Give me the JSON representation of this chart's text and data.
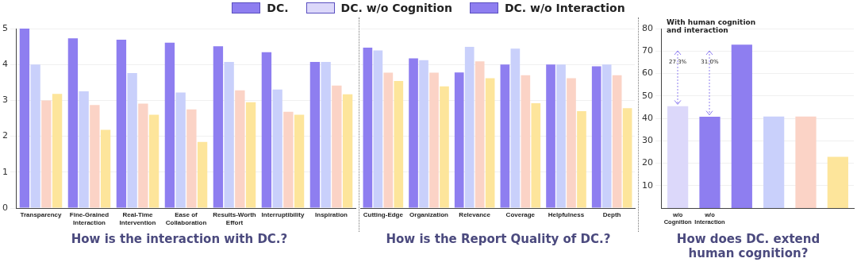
{
  "chart_data": [
    {
      "type": "bar",
      "title": "How is the interaction with DC.?",
      "categories": [
        "Transparency",
        "Fine-Grained Interaction",
        "Real-Time Intervention",
        "Ease of Collaboration",
        "Results-Worth Effort",
        "Interruptibility",
        "Inspiration"
      ],
      "series": [
        {
          "name": "DC.",
          "color": "#8e7ef0",
          "values": [
            5.0,
            4.73,
            4.69,
            4.61,
            4.51,
            4.34,
            4.07
          ]
        },
        {
          "color": "#c9d0fb",
          "values": [
            4.0,
            3.25,
            3.76,
            3.22,
            4.07,
            3.3,
            4.07
          ]
        },
        {
          "color": "#fbd3c6",
          "values": [
            3.0,
            2.87,
            2.91,
            2.75,
            3.28,
            2.68,
            3.41
          ]
        },
        {
          "color": "#fde59b",
          "values": [
            3.18,
            2.18,
            2.6,
            1.84,
            2.95,
            2.6,
            3.17
          ]
        }
      ],
      "ylim": [
        0,
        5
      ],
      "yticks": [
        0,
        1,
        2,
        3,
        4,
        5
      ],
      "grid": "y",
      "legend": "top"
    },
    {
      "type": "bar",
      "title": "How is the Report Quality of DC.?",
      "categories": [
        "Cutting-Edge",
        "Organization",
        "Relevance",
        "Coverage",
        "Helpfulness",
        "Depth"
      ],
      "series": [
        {
          "color": "#8e7ef0",
          "values": [
            4.47,
            4.17,
            3.78,
            4.0,
            4.0,
            3.95
          ]
        },
        {
          "color": "#c9d0fb",
          "values": [
            4.39,
            4.12,
            4.49,
            4.44,
            4.0,
            4.0
          ]
        },
        {
          "color": "#fbd3c6",
          "values": [
            3.77,
            3.77,
            4.09,
            3.7,
            3.62,
            3.7
          ]
        },
        {
          "color": "#fde59b",
          "values": [
            3.54,
            3.39,
            3.62,
            2.92,
            2.7,
            2.78
          ]
        }
      ],
      "ylim": [
        0,
        5
      ],
      "yticks": [
        0,
        1,
        2,
        3,
        4,
        5
      ],
      "grid": "y",
      "tick_labels": "x"
    },
    {
      "type": "bar",
      "title": "How does DC. extend human cognition?",
      "categories": [
        "w/o Cognition",
        "w/o Interaction",
        null,
        null,
        null,
        null
      ],
      "stacked": true,
      "series": [
        {
          "name": "DC. w/o Cognition",
          "color": "#dcd8fa",
          "values": [
            45.4,
            null,
            null,
            null,
            null,
            null
          ]
        },
        {
          "name": "DC. w/o Interaction",
          "color": "#8e7ef0",
          "values": [
            null,
            40.7,
            null,
            null,
            null,
            null
          ]
        },
        {
          "color": "#8e7ef0",
          "values": [
            null,
            null,
            72.8,
            null,
            null,
            null
          ]
        },
        {
          "color": "#c9d0fb",
          "values": [
            null,
            null,
            null,
            40.8,
            null,
            null
          ]
        },
        {
          "color": "#fbd3c6",
          "values": [
            null,
            null,
            null,
            null,
            40.8,
            null
          ]
        },
        {
          "color": "#fde59b",
          "values": [
            null,
            null,
            null,
            null,
            null,
            22.8
          ]
        }
      ],
      "ylim": [
        0,
        80
      ],
      "yticks": [
        10,
        20,
        30,
        40,
        50,
        60,
        70,
        80
      ],
      "grid": "y",
      "legend": "top",
      "annotations": [
        "With human cognition and interaction",
        {
          "text": "27.3%",
          "x": "w/o Cognition",
          "y": 65
        },
        {
          "text": "31.0%",
          "x": "w/o Interaction",
          "y": 65
        }
      ]
    }
  ]
}
